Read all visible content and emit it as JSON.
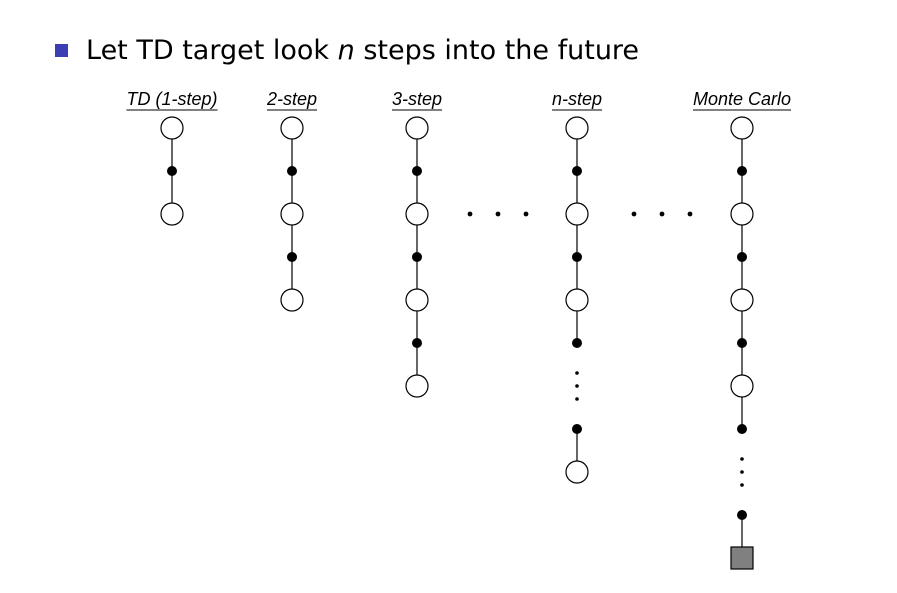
{
  "bullet": {
    "prefix": "Let TD target look ",
    "variable": "n",
    "suffix": " steps into the future"
  },
  "colors": {
    "bullet": "#3b3fb3",
    "state_fill": "#ffffff",
    "action_fill": "#000000",
    "terminal_fill": "#808080",
    "stroke": "#000000"
  },
  "columns": [
    {
      "label": "TD (1-step)",
      "nodes": [
        "state",
        "action",
        "state"
      ]
    },
    {
      "label": "2-step",
      "nodes": [
        "state",
        "action",
        "state",
        "action",
        "state"
      ]
    },
    {
      "label": "3-step",
      "nodes": [
        "state",
        "action",
        "state",
        "action",
        "state",
        "action",
        "state"
      ]
    },
    {
      "label": "n-step",
      "nodes": [
        "state",
        "action",
        "state",
        "action",
        "state",
        "action",
        "ellipsis",
        "action",
        "state"
      ]
    },
    {
      "label": "Monte Carlo",
      "nodes": [
        "state",
        "action",
        "state",
        "action",
        "state",
        "action",
        "state",
        "action",
        "ellipsis",
        "action",
        "terminal"
      ]
    }
  ]
}
